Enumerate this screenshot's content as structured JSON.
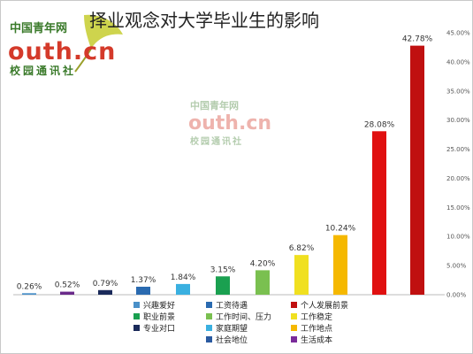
{
  "brand": {
    "line1": "中国青年网",
    "domain": "outh.cn",
    "line3": "校园通讯社",
    "colors": {
      "green": "#3a7a2a",
      "red": "#d43a2a",
      "leaf": "#c9cf3a"
    }
  },
  "chart_data": {
    "type": "bar",
    "title": "择业观念对大学毕业生的影响",
    "xlabel": "",
    "ylabel": "",
    "ylim": [
      0,
      45
    ],
    "ytick_step": 5,
    "grid": false,
    "legend_position": "bottom",
    "categories": [
      "兴趣爱好",
      "专业对口",
      "职业前景",
      "工资待遇",
      "工作时间、压力",
      "家庭期望",
      "社会地位",
      "工作稳定",
      "工作地点",
      "生活成本",
      "个人发展前景"
    ],
    "values": [
      0.26,
      0.52,
      0.79,
      1.37,
      1.84,
      3.15,
      4.2,
      6.82,
      10.24,
      28.08,
      42.78
    ],
    "value_labels": [
      "0.26%",
      "0.52%",
      "0.79%",
      "1.37%",
      "1.84%",
      "3.15%",
      "4.20%",
      "6.82%",
      "10.24%",
      "28.08%",
      "42.78%"
    ],
    "colors": [
      "#4a90c8",
      "#6a2a8a",
      "#1a2a5a",
      "#2a6ab0",
      "#3ab0e0",
      "#1aa050",
      "#7ac050",
      "#f0e020",
      "#f5b800",
      "#e01010",
      "#c01010"
    ],
    "legend": [
      {
        "label": "兴趣爱好",
        "color": "#4a90c8"
      },
      {
        "label": "职业前景",
        "color": "#1aa050"
      },
      {
        "label": "专业对口",
        "color": "#1a2a5a"
      },
      {
        "label": "工资待遇",
        "color": "#2a6ab0"
      },
      {
        "label": "工作时间、压力",
        "color": "#7ac050"
      },
      {
        "label": "家庭期望",
        "color": "#3ab0e0"
      },
      {
        "label": "社会地位",
        "color": "#2a5aa0"
      },
      {
        "label": "个人发展前景",
        "color": "#c01010"
      },
      {
        "label": "工作稳定",
        "color": "#f0e020"
      },
      {
        "label": "工作地点",
        "color": "#f5b800"
      },
      {
        "label": "生活成本",
        "color": "#7a2a9a"
      }
    ]
  }
}
